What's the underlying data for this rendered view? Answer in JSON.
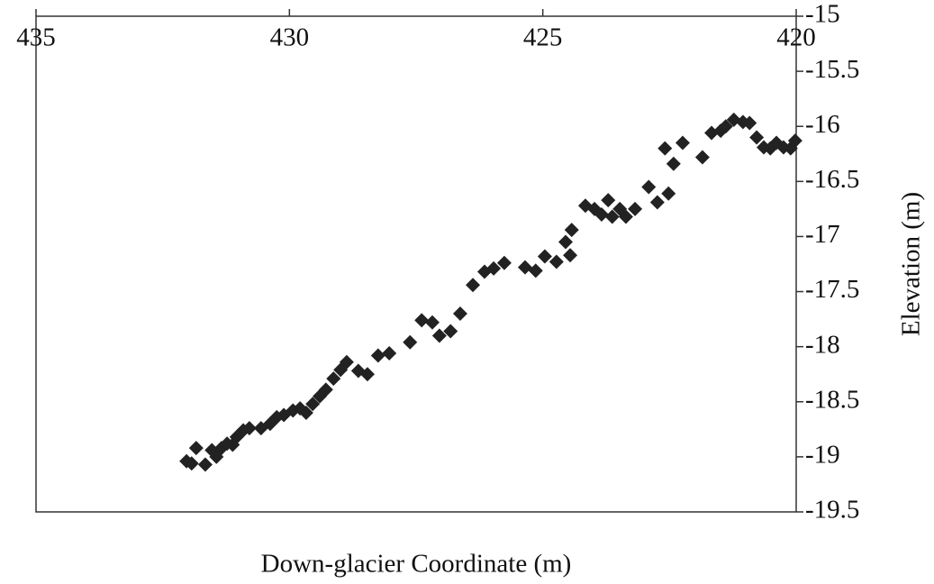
{
  "chart_data": {
    "type": "scatter",
    "x_label": "Down-glacier Coordinate (m)",
    "y_label": "Elevation (m)",
    "xlim": [
      435,
      420
    ],
    "xticks": [
      435,
      430,
      425,
      420
    ],
    "ylim": [
      -19.5,
      -15
    ],
    "yticks": [
      -15,
      -15.5,
      -16,
      -16.5,
      -17,
      -17.5,
      -18,
      -18.5,
      -19,
      -19.5
    ],
    "color": "#222222",
    "series": [
      {
        "x": [
          432.03,
          431.93,
          431.84,
          431.66,
          431.53,
          431.44,
          431.34,
          431.23,
          431.12,
          431.04,
          430.91,
          430.79,
          430.56,
          430.38,
          430.25,
          430.11,
          429.93,
          429.79,
          429.67,
          429.54,
          429.4,
          429.28,
          429.13,
          428.99,
          428.87,
          428.64,
          428.46,
          428.25,
          428.03,
          427.62,
          427.39,
          427.18,
          427.04,
          426.82,
          426.63,
          426.38,
          426.15,
          425.97,
          425.76,
          425.35,
          425.14,
          424.96,
          424.73,
          424.55,
          424.46,
          424.43,
          424.16,
          423.98,
          423.84,
          423.71,
          423.63,
          423.48,
          423.36,
          423.18,
          422.91,
          422.74,
          422.52,
          422.59,
          422.42,
          422.24,
          421.85,
          421.67,
          421.49,
          421.39,
          421.23,
          421.05,
          420.92,
          420.78,
          420.64,
          420.51,
          420.39,
          420.25,
          420.11,
          420.02
        ],
        "values": [
          -19.04,
          -19.06,
          -18.92,
          -19.07,
          -18.94,
          -19.0,
          -18.92,
          -18.88,
          -18.89,
          -18.82,
          -18.76,
          -18.74,
          -18.74,
          -18.7,
          -18.64,
          -18.62,
          -18.58,
          -18.56,
          -18.6,
          -18.52,
          -18.45,
          -18.39,
          -18.29,
          -18.21,
          -18.14,
          -18.22,
          -18.25,
          -18.08,
          -18.06,
          -17.96,
          -17.76,
          -17.78,
          -17.9,
          -17.86,
          -17.7,
          -17.44,
          -17.32,
          -17.29,
          -17.24,
          -17.28,
          -17.31,
          -17.18,
          -17.23,
          -17.05,
          -17.17,
          -16.94,
          -16.72,
          -16.75,
          -16.8,
          -16.67,
          -16.82,
          -16.75,
          -16.82,
          -16.75,
          -16.55,
          -16.69,
          -16.61,
          -16.2,
          -16.34,
          -16.15,
          -16.28,
          -16.06,
          -16.04,
          -16.0,
          -15.94,
          -15.96,
          -15.97,
          -16.1,
          -16.19,
          -16.2,
          -16.15,
          -16.19,
          -16.2,
          -16.13
        ]
      }
    ]
  }
}
